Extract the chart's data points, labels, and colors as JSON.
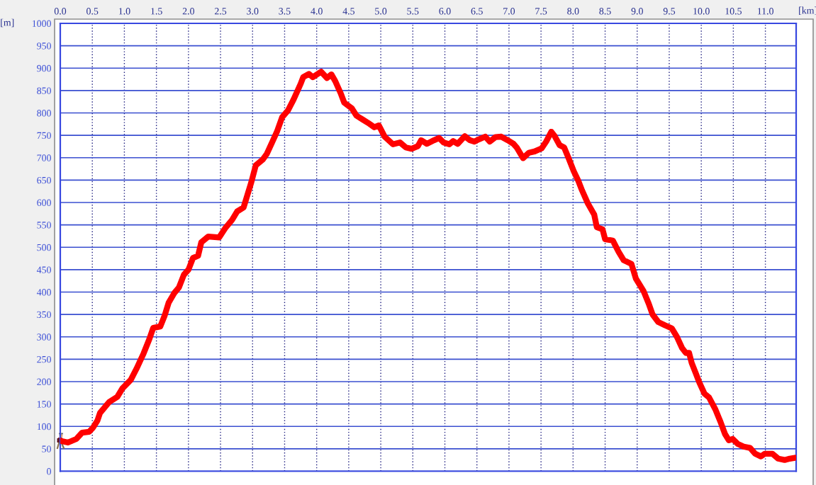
{
  "chart_data": {
    "type": "line",
    "xlabel": "[km]",
    "ylabel": "[m]",
    "xlim": [
      0,
      11.48
    ],
    "xticks": [
      {
        "value": 0,
        "label": "0.0"
      },
      0.5,
      {
        "value": 1,
        "label": "1.0"
      },
      1.5,
      {
        "value": 2,
        "label": "2.0"
      },
      2.5,
      {
        "value": 3,
        "label": "3.0"
      },
      3.5,
      {
        "value": 4,
        "label": "4.0"
      },
      4.5,
      {
        "value": 5,
        "label": "5.0"
      },
      5.5,
      {
        "value": 6,
        "label": "6.0"
      },
      6.5,
      {
        "value": 7,
        "label": "7.0"
      },
      7.5,
      {
        "value": 8,
        "label": "8.0"
      },
      8.5,
      {
        "value": 9,
        "label": "9.0"
      },
      9.5,
      {
        "value": 10,
        "label": "10.0"
      },
      10.5,
      {
        "value": 11,
        "label": "11.0"
      }
    ],
    "ylim": [
      0,
      1000
    ],
    "yticks": [
      0,
      50,
      100,
      150,
      200,
      250,
      300,
      350,
      400,
      450,
      500,
      550,
      600,
      650,
      700,
      750,
      800,
      850,
      900,
      950,
      1000
    ],
    "grid": true,
    "x": [
      0.0,
      0.12,
      0.25,
      0.34,
      0.45,
      0.51,
      0.58,
      0.62,
      0.76,
      0.89,
      0.97,
      1.1,
      1.19,
      1.3,
      1.39,
      1.45,
      1.56,
      1.63,
      1.69,
      1.78,
      1.85,
      1.93,
      2.0,
      2.07,
      2.15,
      2.2,
      2.31,
      2.48,
      2.57,
      2.68,
      2.76,
      2.86,
      2.92,
      2.98,
      3.05,
      3.16,
      3.22,
      3.31,
      3.38,
      3.46,
      3.55,
      3.64,
      3.75,
      3.79,
      3.88,
      3.94,
      4.07,
      4.16,
      4.23,
      4.29,
      4.38,
      4.43,
      4.55,
      4.62,
      4.71,
      4.8,
      4.9,
      4.97,
      5.06,
      5.19,
      5.3,
      5.39,
      5.48,
      5.58,
      5.63,
      5.72,
      5.83,
      5.91,
      5.98,
      6.07,
      6.13,
      6.2,
      6.31,
      6.39,
      6.46,
      6.53,
      6.63,
      6.7,
      6.79,
      6.88,
      6.98,
      7.07,
      7.12,
      7.22,
      7.31,
      7.4,
      7.51,
      7.58,
      7.66,
      7.71,
      7.79,
      7.86,
      7.93,
      8.01,
      8.08,
      8.14,
      8.23,
      8.33,
      8.37,
      8.46,
      8.5,
      8.62,
      8.71,
      8.79,
      8.91,
      8.98,
      9.1,
      9.18,
      9.24,
      9.33,
      9.43,
      9.54,
      9.62,
      9.7,
      9.76,
      9.81,
      9.85,
      9.91,
      9.97,
      10.05,
      10.12,
      10.22,
      10.3,
      10.37,
      10.43,
      10.49,
      10.57,
      10.66,
      10.76,
      10.84,
      10.93,
      10.99,
      11.11,
      11.2,
      11.3,
      11.38,
      11.46
    ],
    "series": [
      {
        "color": "#ff0000",
        "values": [
          68,
          64,
          72,
          86,
          88,
          97,
          113,
          130,
          154,
          166,
          185,
          204,
          229,
          263,
          295,
          320,
          323,
          348,
          376,
          398,
          410,
          439,
          450,
          476,
          481,
          511,
          524,
          522,
          542,
          561,
          580,
          589,
          617,
          645,
          683,
          696,
          708,
          736,
          758,
          790,
          805,
          830,
          865,
          880,
          887,
          880,
          892,
          878,
          886,
          871,
          842,
          823,
          810,
          794,
          786,
          778,
          768,
          772,
          747,
          730,
          734,
          723,
          720,
          726,
          739,
          731,
          739,
          744,
          734,
          730,
          737,
          731,
          748,
          739,
          736,
          741,
          747,
          736,
          746,
          747,
          739,
          731,
          723,
          699,
          711,
          714,
          721,
          736,
          758,
          749,
          728,
          723,
          699,
          670,
          649,
          627,
          598,
          573,
          545,
          540,
          518,
          515,
          490,
          471,
          463,
          430,
          402,
          374,
          350,
          333,
          326,
          319,
          300,
          275,
          264,
          264,
          242,
          220,
          198,
          173,
          165,
          138,
          110,
          83,
          69,
          72,
          61,
          55,
          52,
          39,
          33,
          39,
          39,
          28,
          25,
          28,
          30
        ]
      }
    ]
  }
}
